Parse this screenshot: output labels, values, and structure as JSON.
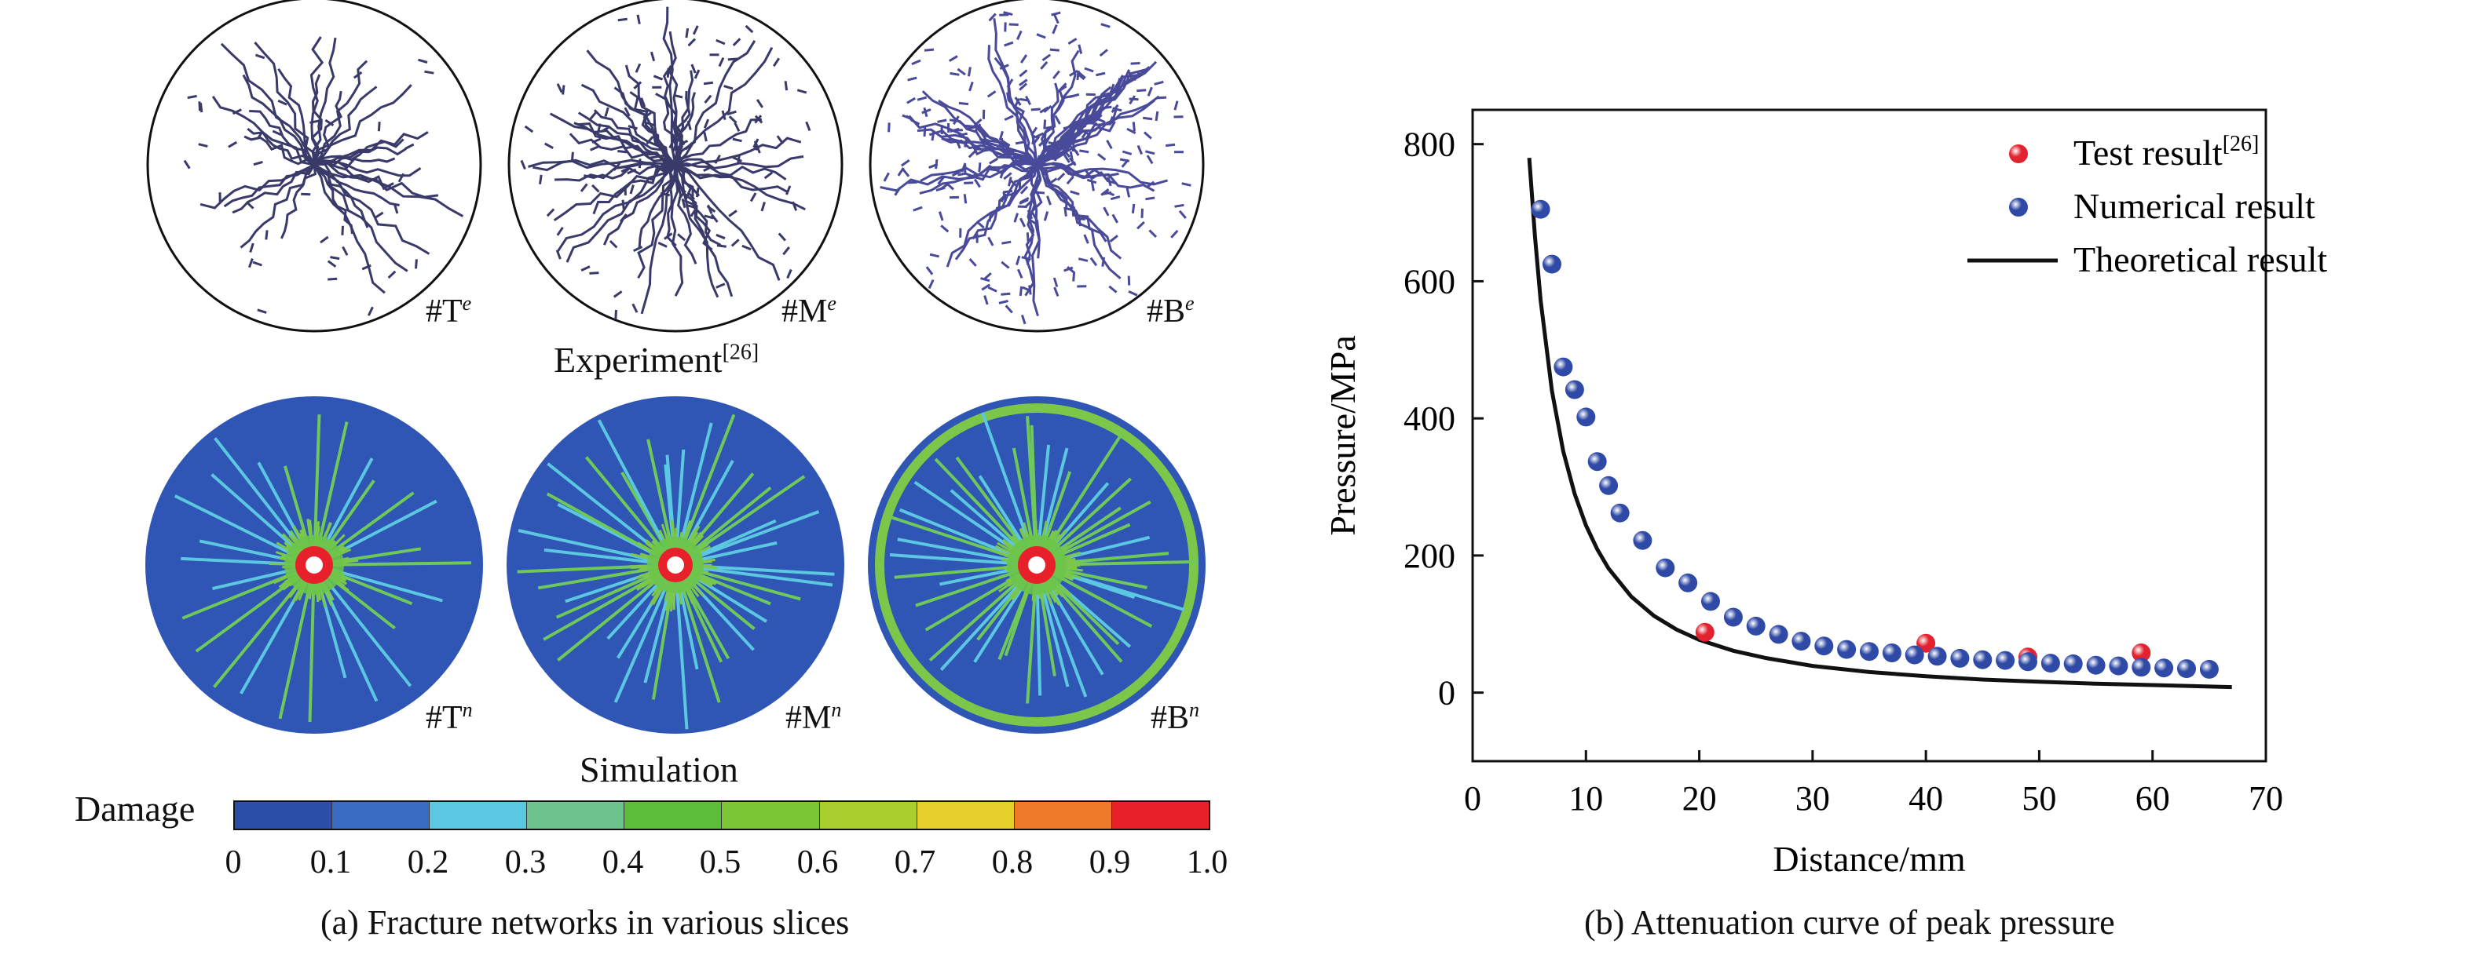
{
  "panel_a": {
    "experiment_slices": [
      {
        "label": "#T",
        "superscript": "e"
      },
      {
        "label": "#M",
        "superscript": "e"
      },
      {
        "label": "#B",
        "superscript": "e"
      }
    ],
    "simulation_slices": [
      {
        "label": "#T",
        "superscript": "n"
      },
      {
        "label": "#M",
        "superscript": "n"
      },
      {
        "label": "#B",
        "superscript": "n"
      }
    ],
    "experiment_title": "Experiment",
    "experiment_ref": "[26]",
    "simulation_title": "Simulation",
    "colorbar": {
      "label": "Damage",
      "ticks": [
        "0",
        "0.1",
        "0.2",
        "0.3",
        "0.4",
        "0.5",
        "0.6",
        "0.7",
        "0.8",
        "0.9",
        "1.0"
      ],
      "colors": [
        "#2b4fa8",
        "#3a6cc4",
        "#5cc7e0",
        "#6cc48c",
        "#5bbf3c",
        "#7bc634",
        "#a8cf2e",
        "#e6cf2a",
        "#ef7a2a",
        "#e8202a"
      ]
    },
    "caption": "(a) Fracture networks in various slices"
  },
  "chart_data": {
    "type": "scatter",
    "xlabel": "Distance/mm",
    "ylabel": "Pressure/MPa",
    "xlim": [
      0,
      70
    ],
    "ylim": [
      -100,
      850
    ],
    "xticks": [
      0,
      10,
      20,
      30,
      40,
      50,
      60,
      70
    ],
    "yticks": [
      0,
      200,
      400,
      600,
      800
    ],
    "legend_placement": "top-right",
    "series": [
      {
        "name": "Test result",
        "name_sup": "[26]",
        "kind": "points",
        "color": "#e3222f",
        "x": [
          20.5,
          40,
          49,
          59
        ],
        "y": [
          88,
          72,
          52,
          58
        ]
      },
      {
        "name": "Numerical result",
        "kind": "points",
        "color": "#2f4aa6",
        "x": [
          6,
          7,
          8,
          9,
          10,
          11,
          12,
          13,
          15,
          17,
          19,
          21,
          23,
          25,
          27,
          29,
          31,
          33,
          35,
          37,
          39,
          41,
          43,
          45,
          47,
          49,
          51,
          53,
          55,
          57,
          59,
          61,
          63,
          65
        ],
        "y": [
          705,
          625,
          475,
          442,
          402,
          337,
          302,
          262,
          222,
          182,
          160,
          133,
          110,
          97,
          85,
          75,
          68,
          63,
          60,
          58,
          55,
          53,
          50,
          48,
          47,
          45,
          43,
          42,
          40,
          39,
          37,
          36,
          35,
          34
        ]
      },
      {
        "name": "Theoretical result",
        "kind": "line",
        "color": "#111111",
        "x": [
          5,
          5.5,
          6,
          7,
          8,
          9,
          10,
          11,
          12,
          14,
          16,
          18,
          20,
          23,
          26,
          30,
          35,
          40,
          45,
          50,
          55,
          60,
          67
        ],
        "y": [
          780,
          665,
          572,
          440,
          352,
          290,
          244,
          209,
          181,
          140,
          112,
          92,
          77,
          61,
          50,
          39,
          30,
          24,
          19,
          16,
          13,
          11,
          8
        ]
      }
    ]
  },
  "panel_b": {
    "caption": "(b) Attenuation curve of peak pressure"
  }
}
